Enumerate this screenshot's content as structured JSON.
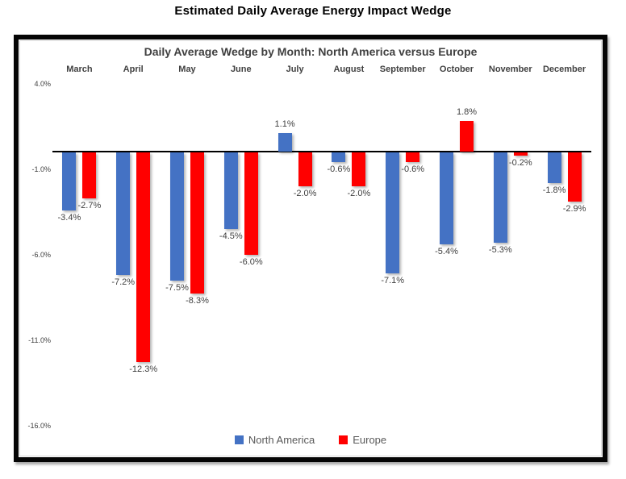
{
  "page_title": "Estimated Daily Average Energy Impact Wedge",
  "chart_data": {
    "type": "bar",
    "title": "Daily Average Wedge by Month: North America versus Europe",
    "categories": [
      "March",
      "April",
      "May",
      "June",
      "July",
      "August",
      "September",
      "October",
      "November",
      "December"
    ],
    "series": [
      {
        "name": "North America",
        "color": "#4472C4",
        "values": [
          -3.4,
          -7.2,
          -7.5,
          -4.5,
          1.1,
          -0.6,
          -7.1,
          -5.4,
          -5.3,
          -1.8
        ],
        "labels": [
          "-3.4%",
          "-7.2%",
          "-7.5%",
          "-4.5%",
          "1.1%",
          "-0.6%",
          "-7.1%",
          "-5.4%",
          "-5.3%",
          "-1.8%"
        ]
      },
      {
        "name": "Europe",
        "color": "#FF0000",
        "values": [
          -2.7,
          -12.3,
          -8.3,
          -6.0,
          -2.0,
          -2.0,
          -0.6,
          1.8,
          -0.2,
          -2.9
        ],
        "labels": [
          "-2.7%",
          "-12.3%",
          "-8.3%",
          "-6.0%",
          "-2.0%",
          "-2.0%",
          "-0.6%",
          "1.8%",
          "-0.2%",
          "-2.9%"
        ]
      }
    ],
    "y_axis": {
      "ticks": [
        {
          "label": "4.0%",
          "value": 4
        },
        {
          "label": "-1.0%",
          "value": -1
        },
        {
          "label": "-6.0%",
          "value": -6
        },
        {
          "label": "-11.0%",
          "value": -11
        },
        {
          "label": "-16.0%",
          "value": -16
        }
      ],
      "ylim": [
        -17.5,
        4.5
      ],
      "grid": false
    },
    "legend_position": "bottom",
    "axis_line_color": "#000000"
  }
}
